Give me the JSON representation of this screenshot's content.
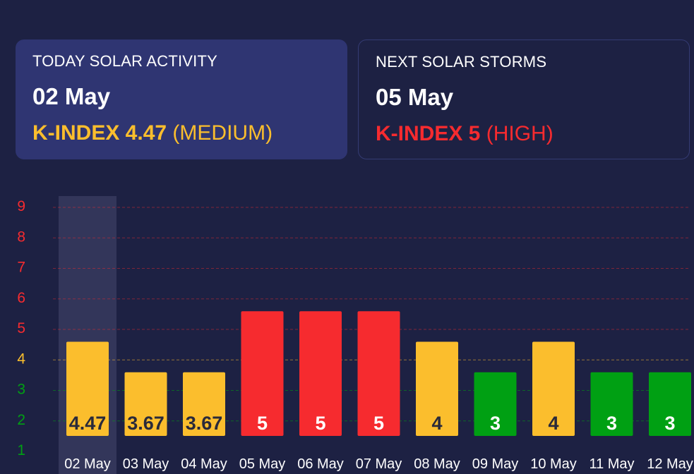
{
  "today_card": {
    "title": "TODAY SOLAR ACTIVITY",
    "date": "02 May",
    "kindex_label": "K-INDEX 4.47",
    "level": "(MEDIUM)"
  },
  "next_card": {
    "title": "NEXT SOLAR STORMS",
    "date": "05 May",
    "kindex_label": "K-INDEX 5",
    "level": "(HIGH)"
  },
  "colors": {
    "background": "#1d2143",
    "medium": "#fbbe2d",
    "high": "#f62b2f",
    "low": "#00a013",
    "highlight": "#33365a"
  },
  "chart_data": {
    "type": "bar",
    "categories": [
      "02 May",
      "03 May",
      "04 May",
      "05 May",
      "06 May",
      "07 May",
      "08 May",
      "09 May",
      "10 May",
      "11 May",
      "12 May"
    ],
    "values": [
      4.47,
      3.67,
      3.67,
      5,
      5,
      5,
      4,
      3,
      4,
      3,
      3
    ],
    "data_labels": [
      "4.47",
      "3.67",
      "3.67",
      "5",
      "5",
      "5",
      "4",
      "3",
      "4",
      "3",
      "3"
    ],
    "levels": [
      "medium",
      "medium",
      "medium",
      "high",
      "high",
      "high",
      "medium",
      "low",
      "medium",
      "low",
      "low"
    ],
    "y_ticks": [
      "1",
      "2",
      "3",
      "4",
      "5",
      "6",
      "7",
      "8",
      "9"
    ],
    "ylim": [
      1,
      9
    ],
    "highlighted_category": "02 May",
    "grid": true
  }
}
